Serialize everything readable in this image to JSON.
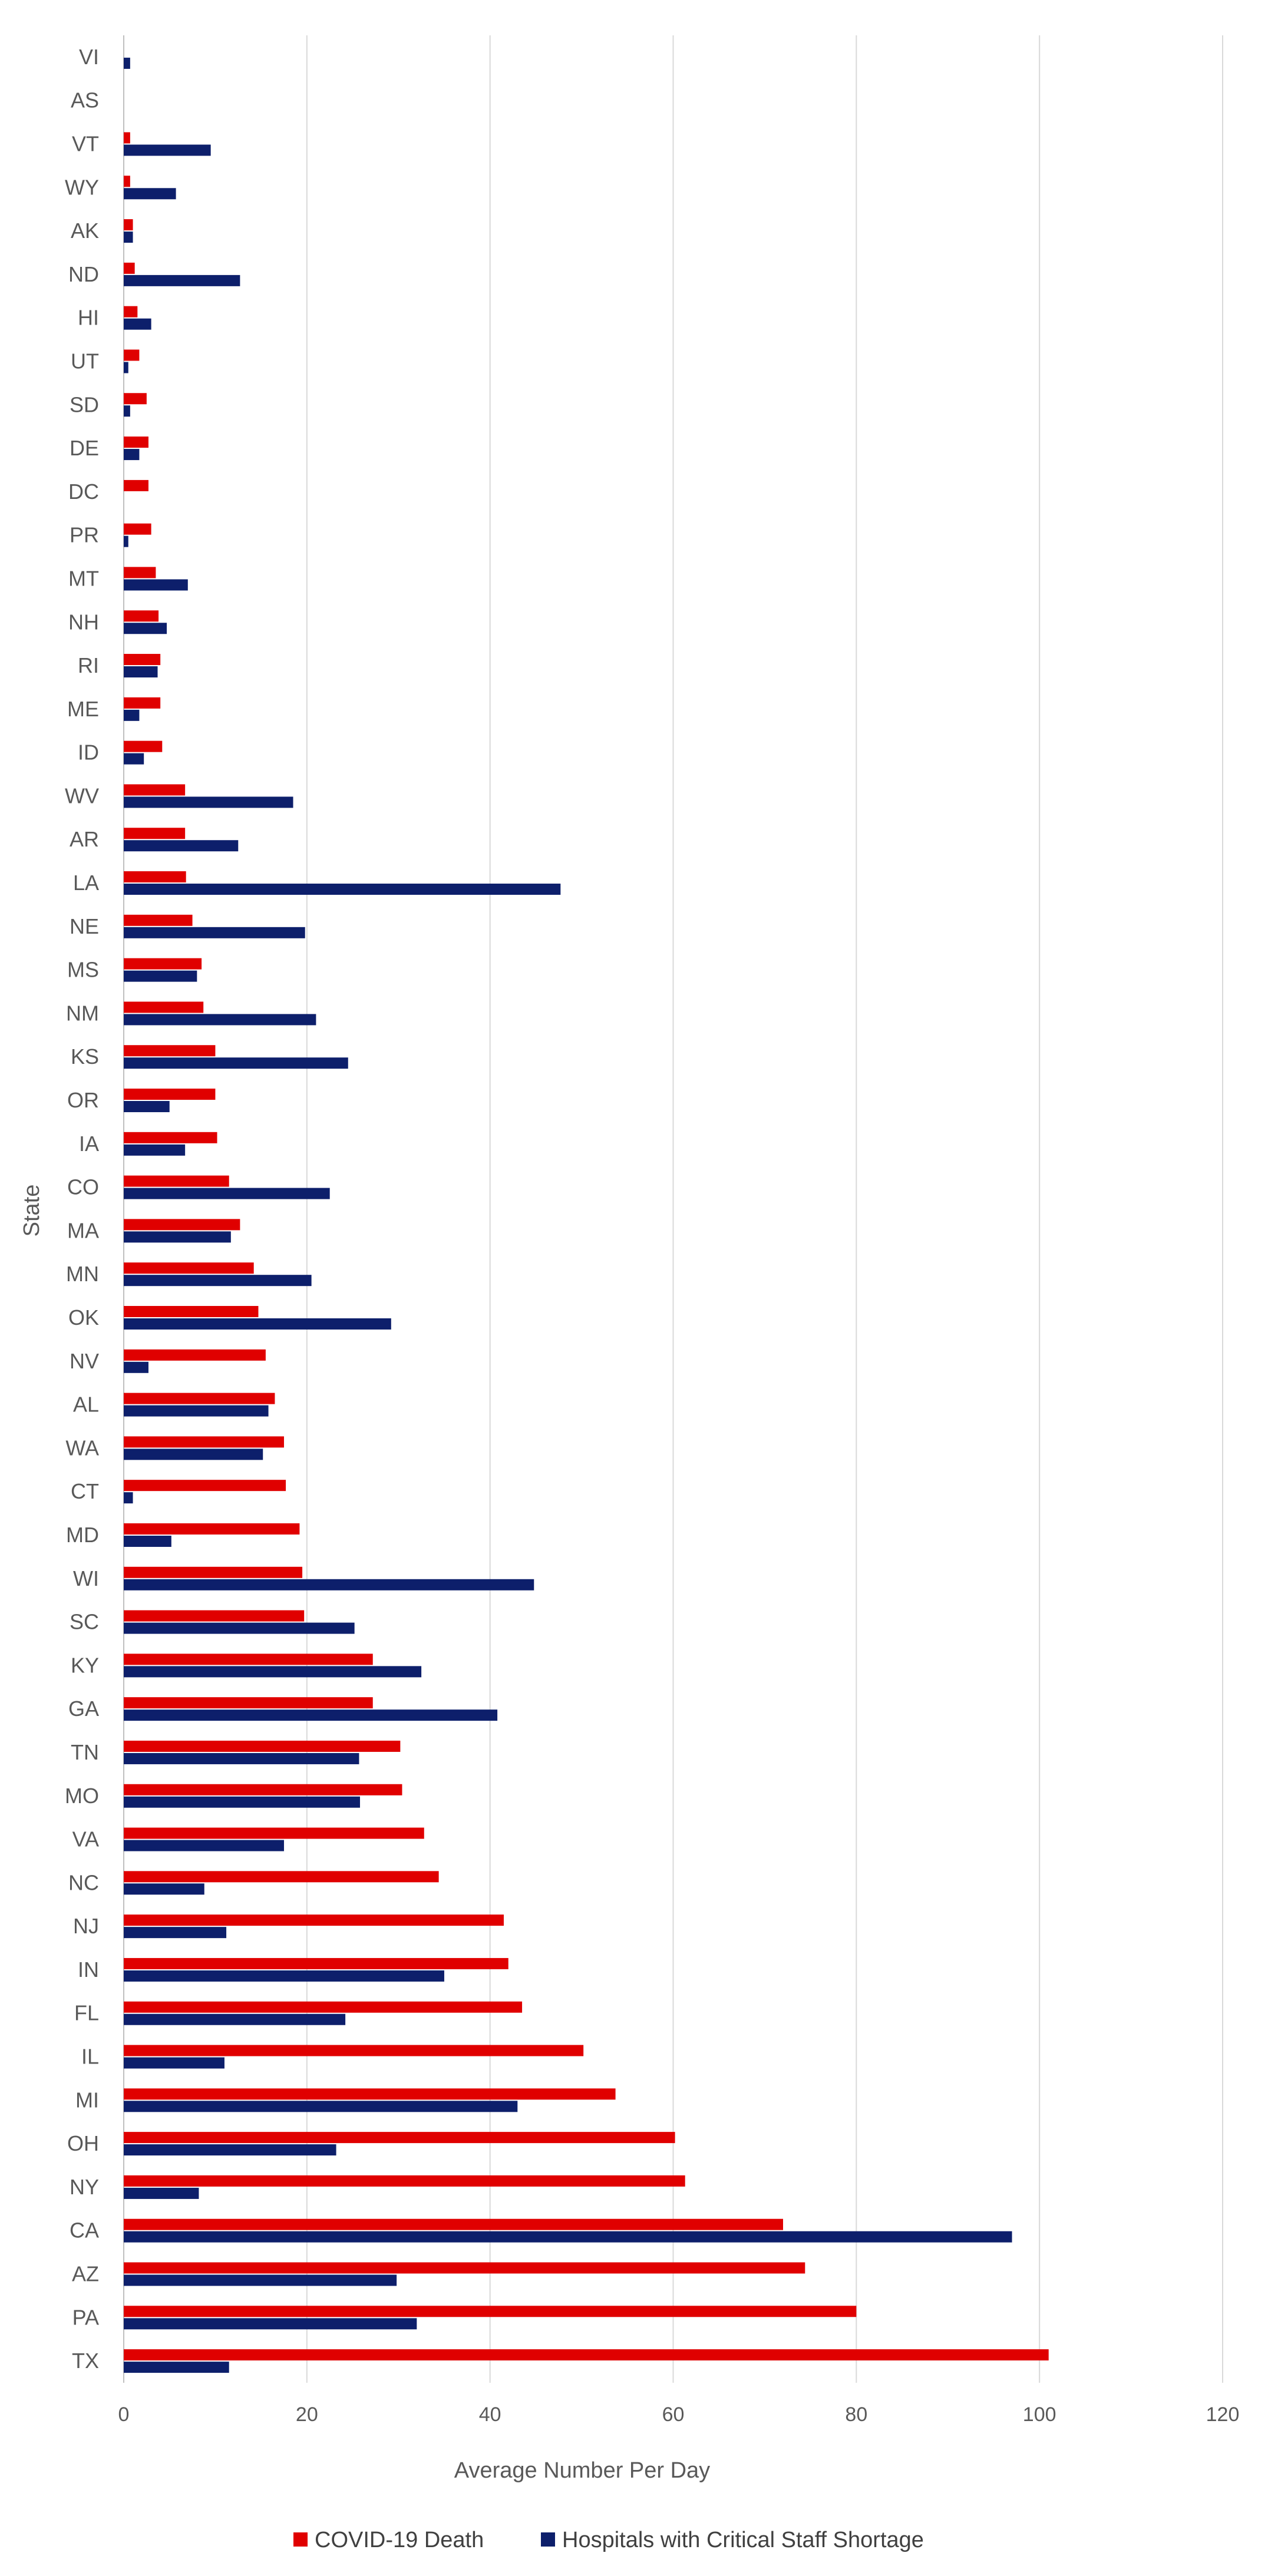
{
  "chart_data": {
    "type": "bar",
    "orientation": "horizontal",
    "xlabel": "Average Number  Per Day",
    "ylabel": "State",
    "xlim": [
      0,
      120
    ],
    "xticks": [
      "0",
      "20",
      "40",
      "60",
      "80",
      "100",
      "120"
    ],
    "grid": "vertical",
    "legend_position": "bottom",
    "categories": [
      "VI",
      "AS",
      "VT",
      "WY",
      "AK",
      "ND",
      "HI",
      "UT",
      "SD",
      "DE",
      "DC",
      "PR",
      "MT",
      "NH",
      "RI",
      "ME",
      "ID",
      "WV",
      "AR",
      "LA",
      "NE",
      "MS",
      "NM",
      "KS",
      "OR",
      "IA",
      "CO",
      "MA",
      "MN",
      "OK",
      "NV",
      "AL",
      "WA",
      "CT",
      "MD",
      "WI",
      "SC",
      "KY",
      "GA",
      "TN",
      "MO",
      "VA",
      "NC",
      "NJ",
      "IN",
      "FL",
      "IL",
      "MI",
      "OH",
      "NY",
      "CA",
      "AZ",
      "PA",
      "TX"
    ],
    "series": [
      {
        "name": "COVID-19 Death",
        "color": "#e00000",
        "values": [
          0,
          0,
          0.7,
          0.7,
          1.0,
          1.2,
          1.5,
          1.7,
          2.5,
          2.7,
          2.7,
          3.0,
          3.5,
          3.8,
          4.0,
          4.0,
          4.2,
          6.7,
          6.7,
          6.8,
          7.5,
          8.5,
          8.7,
          10.0,
          10.0,
          10.2,
          11.5,
          12.7,
          14.2,
          14.7,
          15.5,
          16.5,
          17.5,
          17.7,
          19.2,
          19.5,
          19.7,
          27.2,
          27.2,
          30.2,
          30.4,
          32.8,
          34.4,
          41.5,
          42.0,
          43.5,
          50.2,
          53.7,
          60.2,
          61.3,
          72.0,
          74.4,
          80.0,
          101.0
        ]
      },
      {
        "name": "Hospitals with Critical Staff Shortage",
        "color": "#0d1f6b",
        "values": [
          0.7,
          0,
          9.5,
          5.7,
          1.0,
          12.7,
          3.0,
          0.5,
          0.7,
          1.7,
          0,
          0.5,
          7.0,
          4.7,
          3.7,
          1.7,
          2.2,
          18.5,
          12.5,
          47.7,
          19.8,
          8.0,
          21.0,
          24.5,
          5.0,
          6.7,
          22.5,
          11.7,
          20.5,
          29.2,
          2.7,
          15.8,
          15.2,
          1.0,
          5.2,
          44.8,
          25.2,
          32.5,
          40.8,
          25.7,
          25.8,
          17.5,
          8.8,
          11.2,
          35.0,
          24.2,
          11.0,
          43.0,
          23.2,
          8.2,
          97.0,
          29.8,
          32.0,
          11.5
        ]
      }
    ]
  }
}
